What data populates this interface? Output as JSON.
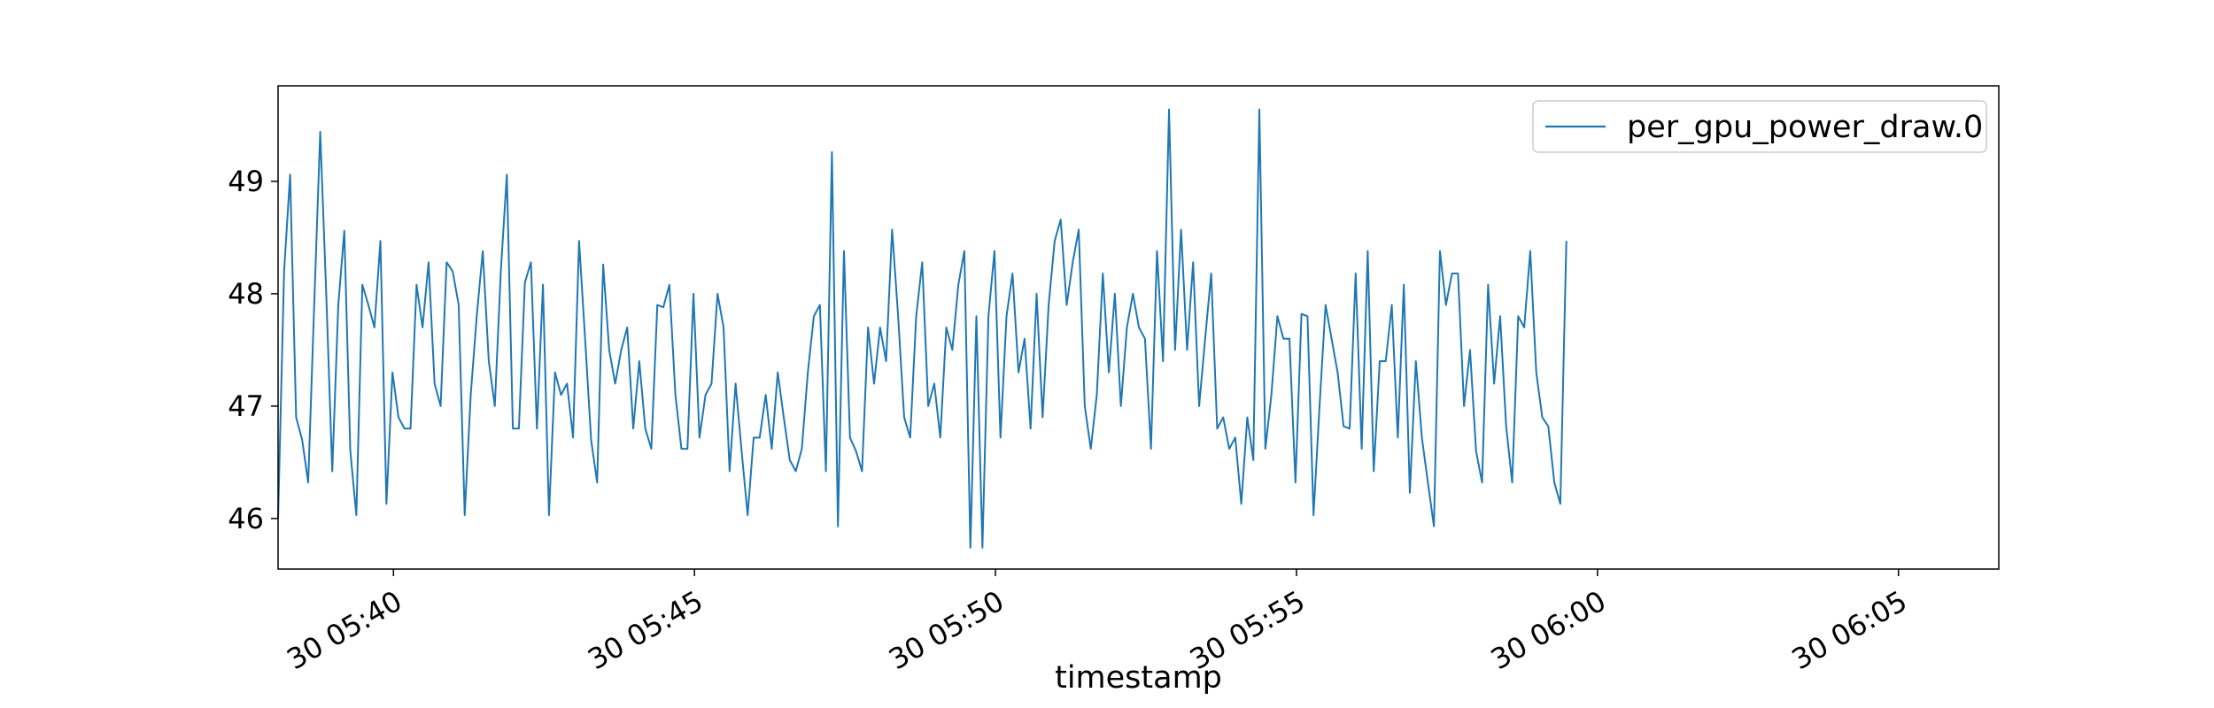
{
  "chart_data": {
    "type": "line",
    "title": "",
    "xlabel": "timestamp",
    "ylabel": "",
    "legend_position": "top-right",
    "grid": false,
    "x_start": "05:38:05",
    "x_step_seconds": 6,
    "xlim": [
      "05:38:05",
      "06:06:40"
    ],
    "ylim": [
      45.55,
      49.85
    ],
    "x_ticks": [
      {
        "time": "05:40:00",
        "label": "30 05:40"
      },
      {
        "time": "05:45:00",
        "label": "30 05:45"
      },
      {
        "time": "05:50:00",
        "label": "30 05:50"
      },
      {
        "time": "05:55:00",
        "label": "30 05:55"
      },
      {
        "time": "06:00:00",
        "label": "30 06:00"
      },
      {
        "time": "06:05:00",
        "label": "30 06:05"
      }
    ],
    "y_ticks": [
      {
        "value": 46,
        "label": "46"
      },
      {
        "value": 47,
        "label": "47"
      },
      {
        "value": 48,
        "label": "48"
      },
      {
        "value": 49,
        "label": "49"
      }
    ],
    "colors": {
      "series": "#1f77b4",
      "axes": "#000000",
      "legend_border": "#cccccc"
    },
    "series": [
      {
        "name": "per_gpu_power_draw.0",
        "values": [
          46.0,
          48.2,
          49.06,
          46.9,
          46.7,
          46.32,
          47.9,
          49.44,
          48.0,
          46.42,
          47.9,
          48.56,
          46.6,
          46.03,
          48.08,
          47.9,
          47.7,
          48.47,
          46.13,
          47.3,
          46.9,
          46.8,
          46.8,
          48.08,
          47.7,
          48.28,
          47.2,
          47.0,
          48.28,
          48.2,
          47.9,
          46.03,
          47.1,
          47.8,
          48.38,
          47.4,
          47.0,
          48.2,
          49.06,
          46.8,
          46.8,
          48.1,
          48.28,
          46.8,
          48.08,
          46.03,
          47.3,
          47.1,
          47.2,
          46.72,
          48.47,
          47.6,
          46.7,
          46.32,
          48.26,
          47.5,
          47.2,
          47.5,
          47.7,
          46.8,
          47.4,
          46.8,
          46.62,
          47.9,
          47.88,
          48.08,
          47.1,
          46.62,
          46.62,
          48.0,
          46.72,
          47.1,
          47.2,
          48.0,
          47.7,
          46.42,
          47.2,
          46.6,
          46.03,
          46.72,
          46.72,
          47.1,
          46.62,
          47.3,
          46.9,
          46.52,
          46.42,
          46.62,
          47.3,
          47.8,
          47.9,
          46.42,
          49.26,
          45.93,
          48.38,
          46.72,
          46.6,
          46.42,
          47.7,
          47.2,
          47.7,
          47.4,
          48.57,
          47.8,
          46.9,
          46.72,
          47.8,
          48.28,
          47.0,
          47.2,
          46.72,
          47.7,
          47.5,
          48.08,
          48.38,
          45.74,
          47.8,
          45.74,
          47.8,
          48.38,
          46.72,
          47.8,
          48.18,
          47.3,
          47.6,
          46.8,
          48.0,
          46.9,
          47.9,
          48.47,
          48.66,
          47.9,
          48.28,
          48.57,
          47.0,
          46.62,
          47.1,
          48.18,
          47.3,
          48.0,
          47.0,
          47.7,
          48.0,
          47.7,
          47.6,
          46.62,
          48.38,
          47.4,
          49.64,
          47.5,
          48.57,
          47.5,
          48.28,
          47.0,
          47.6,
          48.18,
          46.8,
          46.9,
          46.62,
          46.72,
          46.13,
          46.9,
          46.52,
          49.64,
          46.62,
          47.1,
          47.8,
          47.6,
          47.6,
          46.32,
          47.82,
          47.8,
          46.03,
          47.0,
          47.9,
          47.6,
          47.3,
          46.82,
          46.8,
          48.18,
          46.62,
          48.38,
          46.42,
          47.4,
          47.4,
          47.9,
          46.72,
          48.08,
          46.23,
          47.4,
          46.72,
          46.32,
          45.93,
          48.38,
          47.9,
          48.18,
          48.18,
          47.0,
          47.5,
          46.6,
          46.32,
          48.08,
          47.2,
          47.8,
          46.82,
          46.32,
          47.8,
          47.7,
          48.38,
          47.3,
          46.9,
          46.82,
          46.32,
          46.13,
          48.47
        ]
      }
    ]
  }
}
